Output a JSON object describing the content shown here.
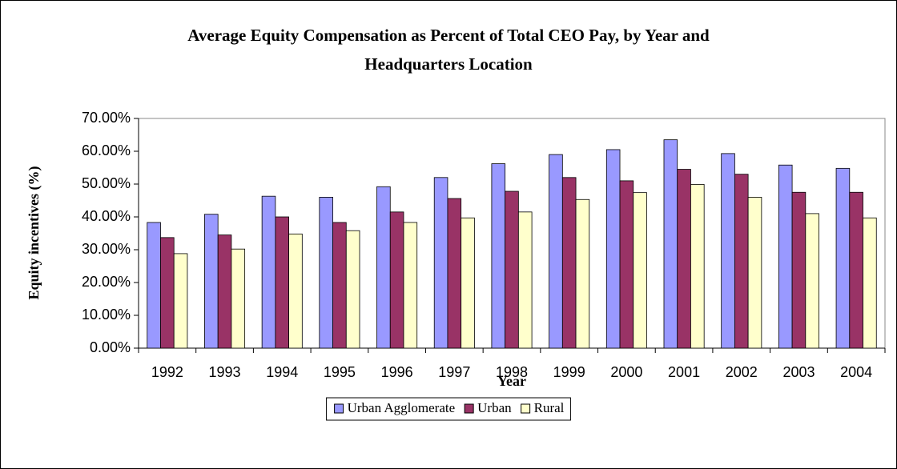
{
  "chart_data": {
    "type": "bar",
    "title": [
      "Average Equity Compensation as Percent of Total CEO Pay, by Year and",
      "Headquarters Location"
    ],
    "x_label": "Year",
    "y_label": "Equity incentives (%)",
    "categories": [
      "1992",
      "1993",
      "1994",
      "1995",
      "1996",
      "1997",
      "1998",
      "1999",
      "2000",
      "2001",
      "2002",
      "2003",
      "2004"
    ],
    "series": [
      {
        "name": "Urban Agglomerate",
        "color": "#9999ff",
        "values": [
          38.3,
          40.8,
          46.3,
          46.0,
          49.2,
          52.0,
          56.2,
          59.0,
          60.5,
          63.5,
          59.3,
          55.8,
          54.8
        ]
      },
      {
        "name": "Urban",
        "color": "#993366",
        "values": [
          33.7,
          34.5,
          40.0,
          38.3,
          41.5,
          45.6,
          47.8,
          52.0,
          51.0,
          54.5,
          53.0,
          47.5,
          47.5
        ]
      },
      {
        "name": "Rural",
        "color": "#ffffcc",
        "values": [
          28.8,
          30.2,
          34.8,
          35.8,
          38.3,
          39.7,
          41.5,
          45.3,
          47.4,
          49.9,
          46.0,
          41.0,
          39.7
        ]
      }
    ],
    "ylim": [
      0,
      70
    ],
    "yticks": [
      {
        "value": 0,
        "label": "0.00%"
      },
      {
        "value": 10,
        "label": "10.00%"
      },
      {
        "value": 20,
        "label": "20.00%"
      },
      {
        "value": 30,
        "label": "30.00%"
      },
      {
        "value": 40,
        "label": "40.00%"
      },
      {
        "value": 50,
        "label": "50.00%"
      },
      {
        "value": 60,
        "label": "60.00%"
      },
      {
        "value": 70,
        "label": "70.00%"
      }
    ],
    "legend": "bottom"
  }
}
